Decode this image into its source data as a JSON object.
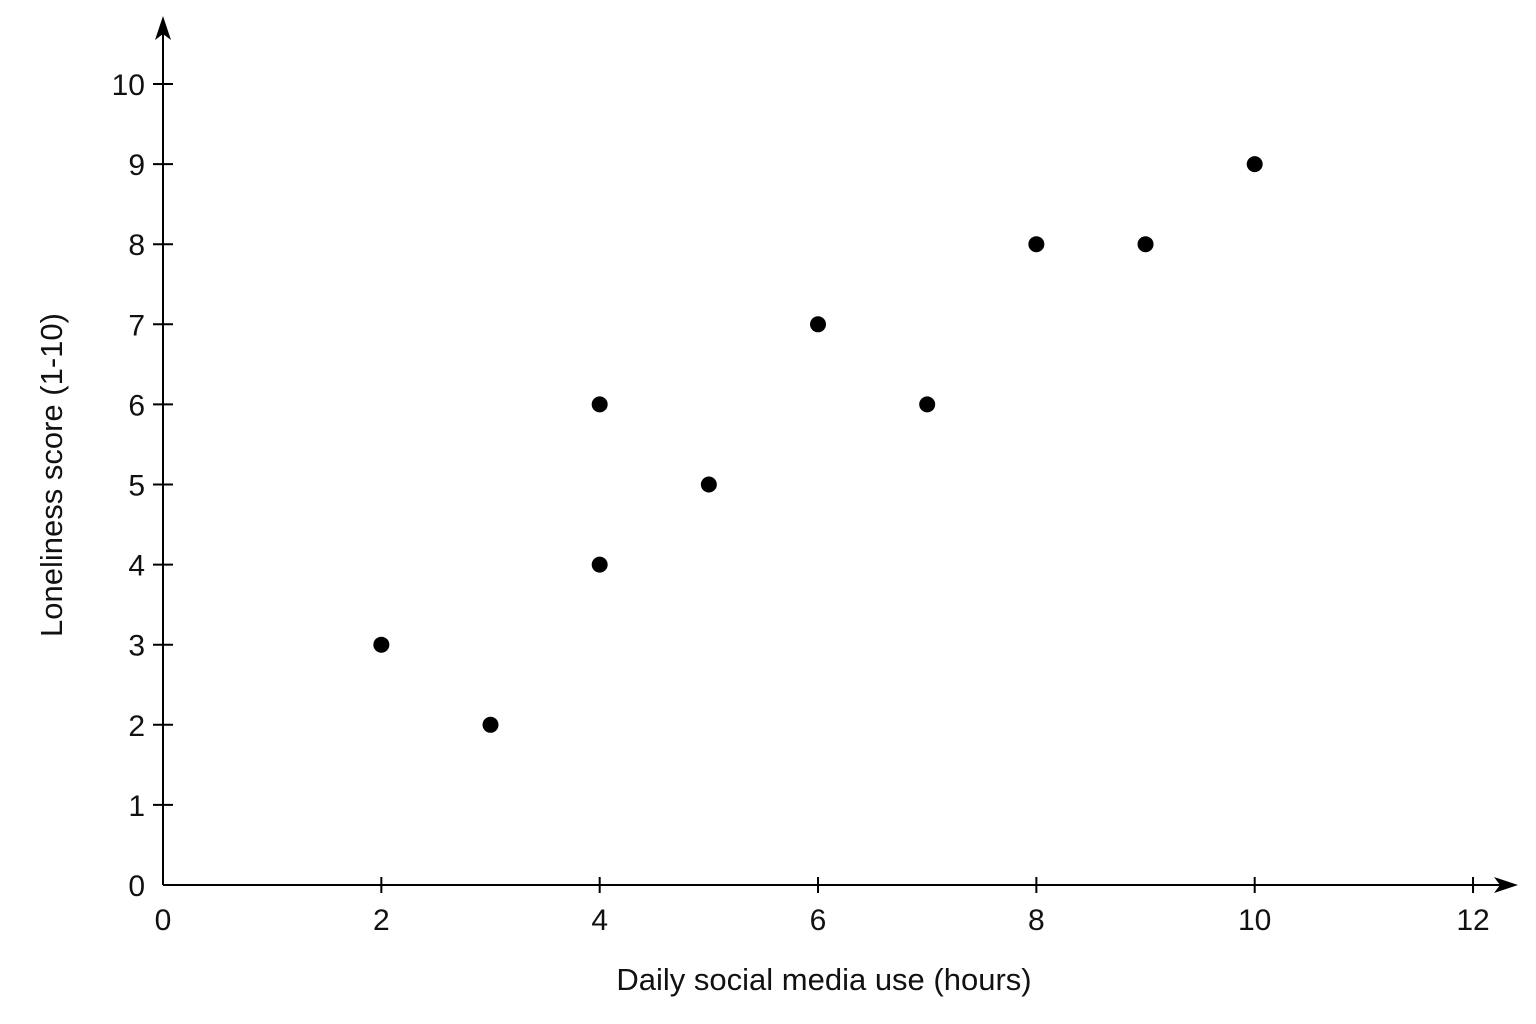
{
  "chart_data": {
    "type": "scatter",
    "title": "",
    "xlabel": "Daily social media use (hours)",
    "ylabel": "Loneliness score (1-10)",
    "xlim": [
      0,
      12
    ],
    "ylim": [
      0,
      10
    ],
    "x_ticks": [
      0,
      2,
      4,
      6,
      8,
      10,
      12
    ],
    "y_ticks": [
      0,
      1,
      2,
      3,
      4,
      5,
      6,
      7,
      8,
      9,
      10
    ],
    "grid": false,
    "series": [
      {
        "points": [
          {
            "x": 2,
            "y": 3
          },
          {
            "x": 3,
            "y": 2
          },
          {
            "x": 4,
            "y": 4
          },
          {
            "x": 4,
            "y": 6
          },
          {
            "x": 5,
            "y": 5
          },
          {
            "x": 6,
            "y": 7
          },
          {
            "x": 7,
            "y": 6
          },
          {
            "x": 8,
            "y": 8
          },
          {
            "x": 9,
            "y": 8
          },
          {
            "x": 10,
            "y": 9
          }
        ],
        "color": "#000000"
      }
    ]
  }
}
